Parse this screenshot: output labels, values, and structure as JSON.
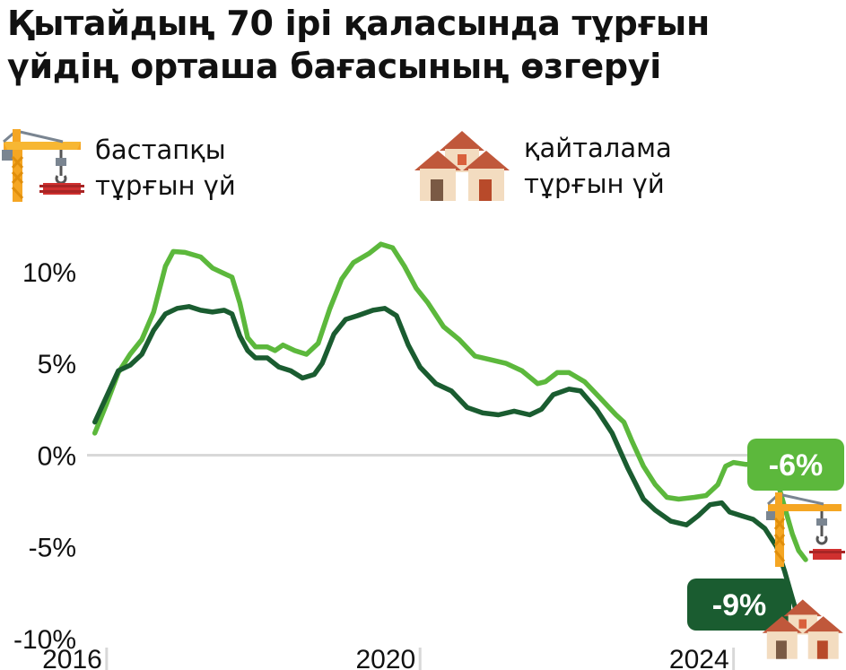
{
  "title": {
    "line1": "Қытайдың 70 ірі қаласында тұрғын",
    "line2": "үйдің орташа бағасының өзгеруі"
  },
  "legend": [
    {
      "line1": "бастапқы",
      "line2": "тұрғын үй",
      "icon": "construction-crane-icon",
      "color": "#5cb83c"
    },
    {
      "line1": "қайталама",
      "line2": "тұрғын үй",
      "icon": "houses-icon",
      "color": "#1a5c30"
    }
  ],
  "chart_data": {
    "type": "line",
    "ylim": [
      -10,
      12
    ],
    "xlim": [
      2015.75,
      2025.0
    ],
    "yticks": [
      {
        "value": 10,
        "label": "10%"
      },
      {
        "value": 5,
        "label": "5%"
      },
      {
        "value": 0,
        "label": "0%"
      },
      {
        "value": -5,
        "label": "-5%"
      },
      {
        "value": -10,
        "label": "-10%"
      }
    ],
    "xticks": [
      {
        "value": 2016,
        "label": "2016"
      },
      {
        "value": 2020,
        "label": "2020"
      },
      {
        "value": 2024,
        "label": "2024"
      }
    ],
    "series": [
      {
        "name": "бастапқы тұрғын үй",
        "color": "#5cb83c",
        "end_label": "-6%",
        "points": [
          [
            2015.85,
            1.2
          ],
          [
            2016.0,
            2.8
          ],
          [
            2016.15,
            4.5
          ],
          [
            2016.3,
            5.5
          ],
          [
            2016.45,
            6.3
          ],
          [
            2016.6,
            7.8
          ],
          [
            2016.75,
            10.3
          ],
          [
            2016.85,
            11.1
          ],
          [
            2017.0,
            11.05
          ],
          [
            2017.2,
            10.8
          ],
          [
            2017.35,
            10.2
          ],
          [
            2017.5,
            9.9
          ],
          [
            2017.6,
            9.7
          ],
          [
            2017.7,
            8.3
          ],
          [
            2017.8,
            6.4
          ],
          [
            2017.9,
            5.9
          ],
          [
            2018.05,
            5.9
          ],
          [
            2018.15,
            5.7
          ],
          [
            2018.25,
            6.0
          ],
          [
            2018.4,
            5.7
          ],
          [
            2018.55,
            5.5
          ],
          [
            2018.7,
            6.1
          ],
          [
            2018.85,
            8.0
          ],
          [
            2019.0,
            9.6
          ],
          [
            2019.15,
            10.5
          ],
          [
            2019.35,
            11.0
          ],
          [
            2019.5,
            11.5
          ],
          [
            2019.65,
            11.3
          ],
          [
            2019.8,
            10.3
          ],
          [
            2019.95,
            9.1
          ],
          [
            2020.1,
            8.3
          ],
          [
            2020.3,
            7.0
          ],
          [
            2020.5,
            6.3
          ],
          [
            2020.7,
            5.4
          ],
          [
            2020.9,
            5.2
          ],
          [
            2021.1,
            5.0
          ],
          [
            2021.3,
            4.6
          ],
          [
            2021.5,
            3.9
          ],
          [
            2021.6,
            4.0
          ],
          [
            2021.75,
            4.5
          ],
          [
            2021.9,
            4.5
          ],
          [
            2022.1,
            4.0
          ],
          [
            2022.3,
            3.1
          ],
          [
            2022.5,
            2.2
          ],
          [
            2022.6,
            1.8
          ],
          [
            2022.7,
            0.8
          ],
          [
            2022.85,
            -0.6
          ],
          [
            2023.0,
            -1.6
          ],
          [
            2023.15,
            -2.3
          ],
          [
            2023.3,
            -2.4
          ],
          [
            2023.5,
            -2.3
          ],
          [
            2023.65,
            -2.2
          ],
          [
            2023.8,
            -1.6
          ],
          [
            2023.9,
            -0.6
          ],
          [
            2024.0,
            -0.4
          ],
          [
            2024.15,
            -0.5
          ],
          [
            2024.3,
            -0.5
          ],
          [
            2024.45,
            -0.7
          ],
          [
            2024.55,
            -1.3
          ],
          [
            2024.65,
            -2.8
          ],
          [
            2024.75,
            -4.3
          ],
          [
            2024.83,
            -5.2
          ],
          [
            2024.92,
            -5.7
          ]
        ]
      },
      {
        "name": "қайталама тұрғын үй",
        "color": "#1a5c30",
        "end_label": "-9%",
        "points": [
          [
            2015.85,
            1.8
          ],
          [
            2016.0,
            3.2
          ],
          [
            2016.15,
            4.6
          ],
          [
            2016.3,
            4.9
          ],
          [
            2016.45,
            5.5
          ],
          [
            2016.6,
            6.8
          ],
          [
            2016.75,
            7.7
          ],
          [
            2016.9,
            8.0
          ],
          [
            2017.05,
            8.1
          ],
          [
            2017.2,
            7.9
          ],
          [
            2017.35,
            7.8
          ],
          [
            2017.5,
            7.9
          ],
          [
            2017.6,
            7.7
          ],
          [
            2017.7,
            6.5
          ],
          [
            2017.8,
            5.7
          ],
          [
            2017.9,
            5.3
          ],
          [
            2018.05,
            5.3
          ],
          [
            2018.2,
            4.8
          ],
          [
            2018.35,
            4.6
          ],
          [
            2018.5,
            4.2
          ],
          [
            2018.65,
            4.4
          ],
          [
            2018.75,
            5.0
          ],
          [
            2018.9,
            6.6
          ],
          [
            2019.05,
            7.4
          ],
          [
            2019.2,
            7.6
          ],
          [
            2019.4,
            7.9
          ],
          [
            2019.55,
            8.0
          ],
          [
            2019.7,
            7.6
          ],
          [
            2019.85,
            6.0
          ],
          [
            2020.0,
            4.8
          ],
          [
            2020.2,
            3.9
          ],
          [
            2020.4,
            3.5
          ],
          [
            2020.6,
            2.6
          ],
          [
            2020.8,
            2.3
          ],
          [
            2021.0,
            2.2
          ],
          [
            2021.2,
            2.4
          ],
          [
            2021.4,
            2.2
          ],
          [
            2021.55,
            2.5
          ],
          [
            2021.7,
            3.3
          ],
          [
            2021.9,
            3.6
          ],
          [
            2022.05,
            3.5
          ],
          [
            2022.25,
            2.5
          ],
          [
            2022.45,
            1.2
          ],
          [
            2022.65,
            -0.7
          ],
          [
            2022.85,
            -2.4
          ],
          [
            2023.0,
            -3.0
          ],
          [
            2023.2,
            -3.6
          ],
          [
            2023.4,
            -3.8
          ],
          [
            2023.55,
            -3.3
          ],
          [
            2023.7,
            -2.7
          ],
          [
            2023.85,
            -2.6
          ],
          [
            2023.95,
            -3.1
          ],
          [
            2024.1,
            -3.3
          ],
          [
            2024.25,
            -3.5
          ],
          [
            2024.4,
            -4.0
          ],
          [
            2024.55,
            -5.0
          ],
          [
            2024.65,
            -6.3
          ],
          [
            2024.75,
            -7.8
          ],
          [
            2024.82,
            -8.8
          ],
          [
            2024.88,
            -9.3
          ]
        ]
      }
    ]
  }
}
